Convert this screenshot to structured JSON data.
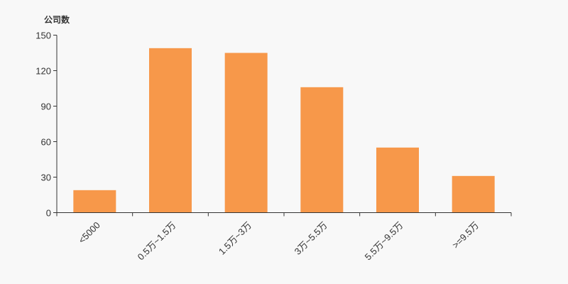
{
  "chart_data": {
    "type": "bar",
    "title": "",
    "xlabel": "",
    "ylabel": "公司数",
    "ylim": [
      0,
      150
    ],
    "yticks": [
      0,
      30,
      60,
      90,
      120,
      150
    ],
    "categories": [
      "<5000",
      "0.5万~1.5万",
      "1.5万~3万",
      "3万~5.5万",
      "5.5万~9.5万",
      ">=9.5万"
    ],
    "values": [
      19,
      139,
      135,
      106,
      55,
      31
    ],
    "bar_color": "#f7984a",
    "axis_color": "#333333",
    "grid": false,
    "legend": "none"
  }
}
